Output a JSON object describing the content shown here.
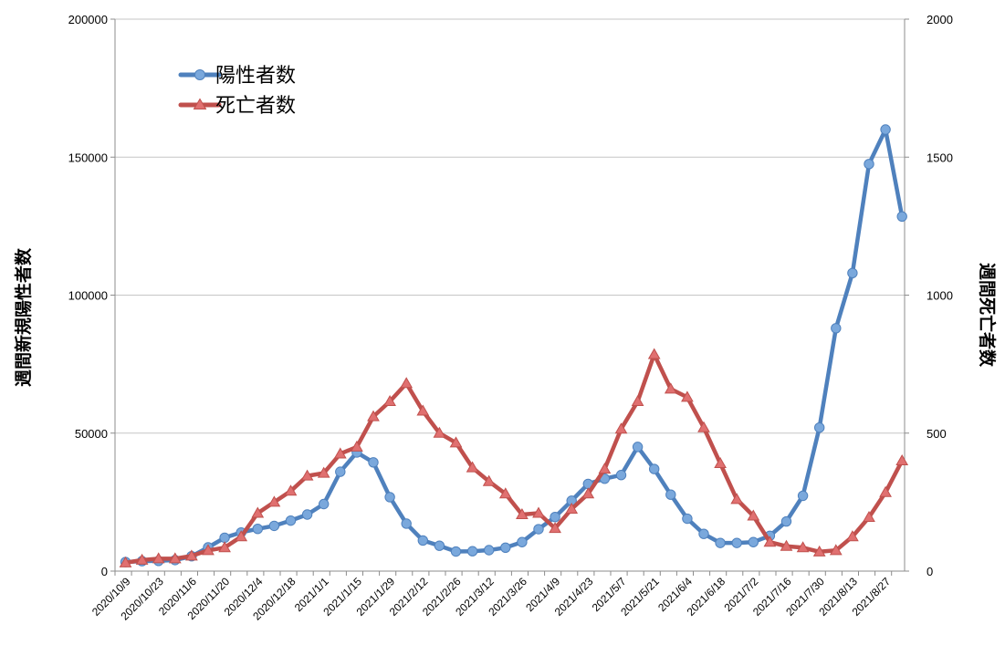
{
  "chart_data": {
    "type": "line",
    "y_left_label": "週間新規陽性者数",
    "y_right_label": "週間死亡者数",
    "y_left_lim": [
      0,
      200000
    ],
    "y_right_lim": [
      0,
      2000
    ],
    "y_left_ticks": [
      "0",
      "50000",
      "100000",
      "150000",
      "200000"
    ],
    "y_right_ticks": [
      "0",
      "500",
      "1000",
      "1500",
      "2000"
    ],
    "x_tick_labels": [
      "2020/10/9",
      "2020/10/23",
      "2020/11/6",
      "2020/11/20",
      "2020/12/4",
      "2020/12/18",
      "2021/1/1",
      "2021/1/15",
      "2021/1/29",
      "2021/2/12",
      "2021/2/26",
      "2021/3/12",
      "2021/3/26",
      "2021/4/9",
      "2021/4/23",
      "2021/5/7",
      "2021/5/21",
      "2021/6/4",
      "2021/6/18",
      "2021/7/2",
      "2021/7/16",
      "2021/7/30",
      "2021/8/13",
      "2021/8/27"
    ],
    "grid": "horizontal",
    "legend_position": "top-left",
    "colors": {
      "positive": "#4f81bd",
      "deaths": "#c0504d"
    },
    "series": [
      {
        "name": "陽性者数",
        "axis": "left",
        "marker": "circle",
        "values": [
          3300,
          3600,
          3700,
          4000,
          5400,
          8600,
          12100,
          14000,
          15300,
          16400,
          18300,
          20500,
          24300,
          36000,
          43000,
          39400,
          26800,
          17200,
          11100,
          9200,
          7100,
          7200,
          7600,
          8500,
          10500,
          15200,
          19600,
          25500,
          31600,
          33500,
          34800,
          45000,
          37000,
          27700,
          19000,
          13500,
          10200,
          10200,
          10500,
          12800,
          18000,
          27300,
          52000,
          88000,
          108000,
          147500,
          160000,
          128500
        ]
      },
      {
        "name": "死亡者数",
        "axis": "right",
        "marker": "triangle",
        "values": [
          30,
          40,
          45,
          45,
          55,
          75,
          85,
          125,
          210,
          250,
          290,
          345,
          355,
          425,
          450,
          560,
          615,
          680,
          580,
          500,
          465,
          375,
          325,
          280,
          205,
          210,
          155,
          225,
          280,
          370,
          515,
          615,
          785,
          660,
          630,
          520,
          390,
          260,
          200,
          105,
          90,
          85,
          70,
          75,
          125,
          195,
          285,
          400
        ]
      }
    ]
  }
}
